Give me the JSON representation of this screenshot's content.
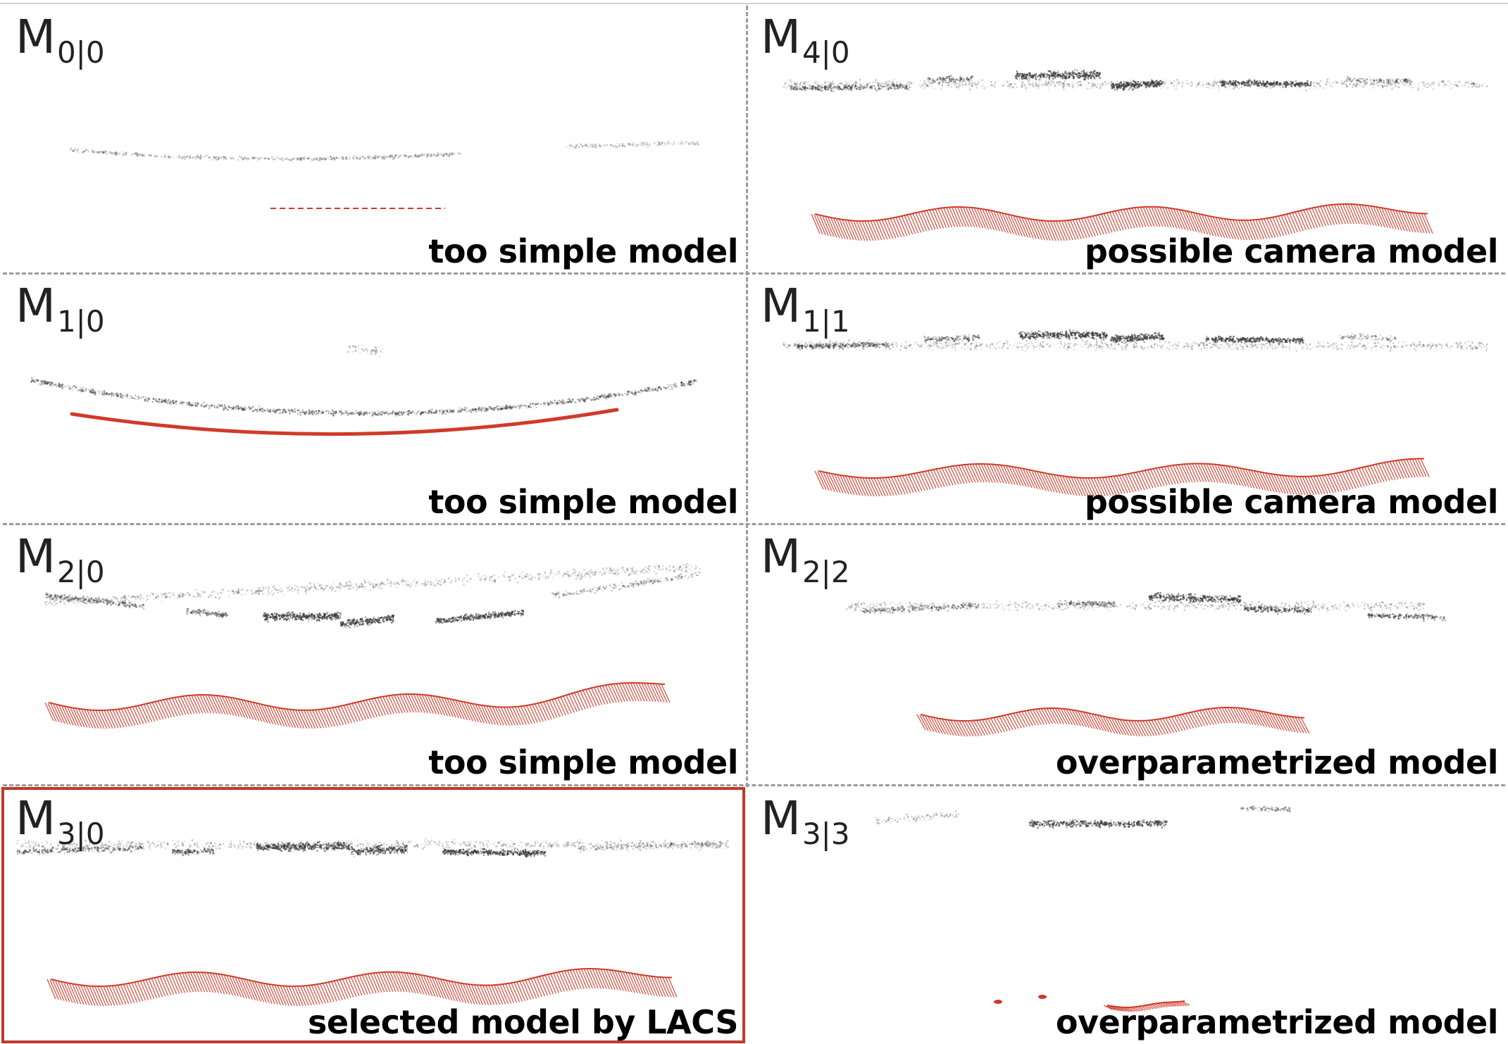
{
  "figure": {
    "colors": {
      "points": "#3a3a3a",
      "camera": "#d03a2a",
      "selected_frame": "#c0392b",
      "divider": "#9a9a9a"
    },
    "panels": [
      {
        "id": "m00",
        "label_main": "M",
        "label_sub": "0|0",
        "caption": "too simple model"
      },
      {
        "id": "m40",
        "label_main": "M",
        "label_sub": "4|0",
        "caption": "possible camera model"
      },
      {
        "id": "m10",
        "label_main": "M",
        "label_sub": "1|0",
        "caption": "too simple model"
      },
      {
        "id": "m11",
        "label_main": "M",
        "label_sub": "1|1",
        "caption": "possible camera model"
      },
      {
        "id": "m20",
        "label_main": "M",
        "label_sub": "2|0",
        "caption": "too simple model"
      },
      {
        "id": "m22",
        "label_main": "M",
        "label_sub": "2|2",
        "caption": "overparametrized model"
      },
      {
        "id": "m30",
        "label_main": "M",
        "label_sub": "3|0",
        "caption": "selected model by LACS",
        "selected": true
      },
      {
        "id": "m33",
        "label_main": "M",
        "label_sub": "3|3",
        "caption": "overparametrized model"
      }
    ]
  }
}
